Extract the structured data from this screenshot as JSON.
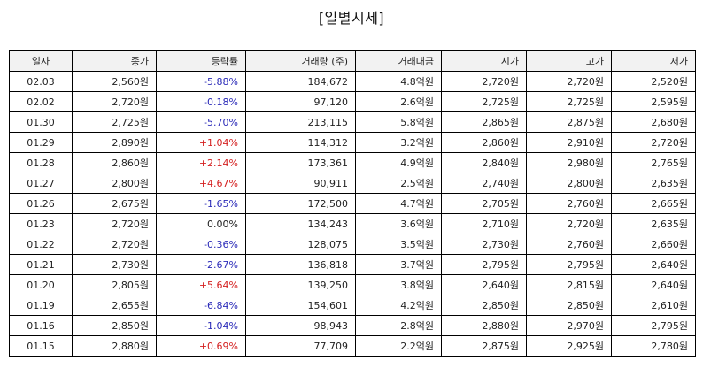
{
  "title": "[일별시세]",
  "colors": {
    "up": "#d42020",
    "down": "#2a2ab8",
    "flat": "#222222"
  },
  "columns": [
    "일자",
    "종가",
    "등락률",
    "거래량 (주)",
    "거래대금",
    "시가",
    "고가",
    "저가"
  ],
  "rows": [
    {
      "date": "02.03",
      "close": "2,560원",
      "change": "-5.88%",
      "dir": "down",
      "volume": "184,672",
      "amount": "4.8억원",
      "open": "2,720원",
      "high": "2,720원",
      "low": "2,520원"
    },
    {
      "date": "02.02",
      "close": "2,720원",
      "change": "-0.18%",
      "dir": "down",
      "volume": "97,120",
      "amount": "2.6억원",
      "open": "2,725원",
      "high": "2,725원",
      "low": "2,595원"
    },
    {
      "date": "01.30",
      "close": "2,725원",
      "change": "-5.70%",
      "dir": "down",
      "volume": "213,115",
      "amount": "5.8억원",
      "open": "2,865원",
      "high": "2,875원",
      "low": "2,680원"
    },
    {
      "date": "01.29",
      "close": "2,890원",
      "change": "+1.04%",
      "dir": "up",
      "volume": "114,312",
      "amount": "3.2억원",
      "open": "2,860원",
      "high": "2,910원",
      "low": "2,720원"
    },
    {
      "date": "01.28",
      "close": "2,860원",
      "change": "+2.14%",
      "dir": "up",
      "volume": "173,361",
      "amount": "4.9억원",
      "open": "2,840원",
      "high": "2,980원",
      "low": "2,765원"
    },
    {
      "date": "01.27",
      "close": "2,800원",
      "change": "+4.67%",
      "dir": "up",
      "volume": "90,911",
      "amount": "2.5억원",
      "open": "2,740원",
      "high": "2,800원",
      "low": "2,635원"
    },
    {
      "date": "01.26",
      "close": "2,675원",
      "change": "-1.65%",
      "dir": "down",
      "volume": "172,500",
      "amount": "4.7억원",
      "open": "2,705원",
      "high": "2,760원",
      "low": "2,665원"
    },
    {
      "date": "01.23",
      "close": "2,720원",
      "change": "0.00%",
      "dir": "flat",
      "volume": "134,243",
      "amount": "3.6억원",
      "open": "2,710원",
      "high": "2,720원",
      "low": "2,635원"
    },
    {
      "date": "01.22",
      "close": "2,720원",
      "change": "-0.36%",
      "dir": "down",
      "volume": "128,075",
      "amount": "3.5억원",
      "open": "2,730원",
      "high": "2,760원",
      "low": "2,660원"
    },
    {
      "date": "01.21",
      "close": "2,730원",
      "change": "-2.67%",
      "dir": "down",
      "volume": "136,818",
      "amount": "3.7억원",
      "open": "2,795원",
      "high": "2,795원",
      "low": "2,640원"
    },
    {
      "date": "01.20",
      "close": "2,805원",
      "change": "+5.64%",
      "dir": "up",
      "volume": "139,250",
      "amount": "3.8억원",
      "open": "2,640원",
      "high": "2,815원",
      "low": "2,640원"
    },
    {
      "date": "01.19",
      "close": "2,655원",
      "change": "-6.84%",
      "dir": "down",
      "volume": "154,601",
      "amount": "4.2억원",
      "open": "2,850원",
      "high": "2,850원",
      "low": "2,610원"
    },
    {
      "date": "01.16",
      "close": "2,850원",
      "change": "-1.04%",
      "dir": "down",
      "volume": "98,943",
      "amount": "2.8억원",
      "open": "2,880원",
      "high": "2,970원",
      "low": "2,795원"
    },
    {
      "date": "01.15",
      "close": "2,880원",
      "change": "+0.69%",
      "dir": "up",
      "volume": "77,709",
      "amount": "2.2억원",
      "open": "2,875원",
      "high": "2,925원",
      "low": "2,780원"
    }
  ]
}
